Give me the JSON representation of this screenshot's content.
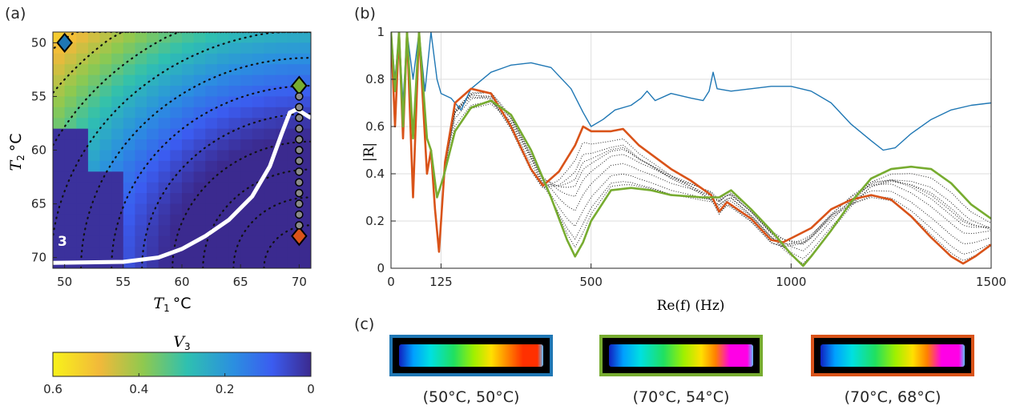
{
  "panel_labels": {
    "a": "(a)",
    "b": "(b)",
    "c": "(c)"
  },
  "colors": {
    "blue": "#1f77b4",
    "green": "#77ac30",
    "orange": "#d95319",
    "heat_high": "#f5d31c",
    "heat_low": "#3a2890"
  },
  "chart_data": [
    {
      "id": "a",
      "type": "heatmap",
      "xlabel_var": "T",
      "xlabel_sub": "1",
      "xlabel_unit": "°C",
      "ylabel_var": "T",
      "ylabel_sub": "2",
      "ylabel_unit": "°C",
      "xlim": [
        49,
        71
      ],
      "ylim": [
        71,
        49
      ],
      "xticks": [
        50,
        55,
        60,
        65,
        70
      ],
      "yticks": [
        50,
        55,
        60,
        65,
        70
      ],
      "annotation": "3",
      "colorbar": {
        "label_var": "V",
        "label_sub": "3",
        "range": [
          0.6,
          0
        ],
        "ticks": [
          "0.6",
          "0.4",
          "0.2",
          "0"
        ]
      },
      "markers": [
        {
          "shape": "diamond",
          "color": "blue",
          "x": 50,
          "y": 50
        },
        {
          "shape": "diamond",
          "color": "green",
          "x": 70,
          "y": 54
        },
        {
          "shape": "diamond",
          "color": "orange",
          "x": 70,
          "y": 68
        },
        {
          "shape": "circle",
          "x": 70,
          "y": 55
        },
        {
          "shape": "circle",
          "x": 70,
          "y": 56
        },
        {
          "shape": "circle",
          "x": 70,
          "y": 57
        },
        {
          "shape": "circle",
          "x": 70,
          "y": 58
        },
        {
          "shape": "circle",
          "x": 70,
          "y": 59
        },
        {
          "shape": "circle",
          "x": 70,
          "y": 60
        },
        {
          "shape": "circle",
          "x": 70,
          "y": 61
        },
        {
          "shape": "circle",
          "x": 70,
          "y": 62
        },
        {
          "shape": "circle",
          "x": 70,
          "y": 63
        },
        {
          "shape": "circle",
          "x": 70,
          "y": 64
        },
        {
          "shape": "circle",
          "x": 70,
          "y": 65
        },
        {
          "shape": "circle",
          "x": 70,
          "y": 66
        },
        {
          "shape": "circle",
          "x": 70,
          "y": 67
        }
      ],
      "boundary_curve": [
        [
          49,
          70.5
        ],
        [
          55,
          70.4
        ],
        [
          58,
          70
        ],
        [
          60,
          69.2
        ],
        [
          62,
          68
        ],
        [
          64,
          66.5
        ],
        [
          66,
          64.3
        ],
        [
          67.5,
          61.5
        ],
        [
          68.5,
          58.5
        ],
        [
          69.2,
          56.5
        ],
        [
          69.8,
          56.2
        ],
        [
          71,
          57
        ]
      ]
    },
    {
      "id": "b",
      "type": "line",
      "xlabel": "Re(f) (Hz)",
      "ylabel": "|R|",
      "xlim": [
        0,
        1500
      ],
      "ylim": [
        0,
        1
      ],
      "xticks": [
        "0",
        "125",
        "500",
        "1000",
        "1500"
      ],
      "xtick_values": [
        0,
        125,
        500,
        1000,
        1500
      ],
      "yticks": [
        "0",
        "0.2",
        "0.4",
        "0.6",
        "0.8",
        "1"
      ],
      "ytick_values": [
        0,
        0.2,
        0.4,
        0.6,
        0.8,
        1
      ],
      "grid": true,
      "series": [
        {
          "color": "blue",
          "points": [
            [
              0,
              1
            ],
            [
              10,
              0.8
            ],
            [
              20,
              1
            ],
            [
              30,
              0.7
            ],
            [
              40,
              1
            ],
            [
              55,
              0.8
            ],
            [
              70,
              1
            ],
            [
              85,
              0.75
            ],
            [
              100,
              1
            ],
            [
              115,
              0.8
            ],
            [
              125,
              0.74
            ],
            [
              150,
              0.72
            ],
            [
              175,
              0.67
            ],
            [
              200,
              0.76
            ],
            [
              250,
              0.83
            ],
            [
              300,
              0.86
            ],
            [
              350,
              0.87
            ],
            [
              400,
              0.85
            ],
            [
              450,
              0.76
            ],
            [
              480,
              0.66
            ],
            [
              500,
              0.6
            ],
            [
              530,
              0.63
            ],
            [
              560,
              0.67
            ],
            [
              600,
              0.69
            ],
            [
              625,
              0.72
            ],
            [
              640,
              0.75
            ],
            [
              660,
              0.71
            ],
            [
              700,
              0.74
            ],
            [
              750,
              0.72
            ],
            [
              780,
              0.71
            ],
            [
              795,
              0.75
            ],
            [
              805,
              0.83
            ],
            [
              815,
              0.76
            ],
            [
              850,
              0.75
            ],
            [
              900,
              0.76
            ],
            [
              950,
              0.77
            ],
            [
              1000,
              0.77
            ],
            [
              1050,
              0.75
            ],
            [
              1100,
              0.7
            ],
            [
              1150,
              0.61
            ],
            [
              1200,
              0.54
            ],
            [
              1230,
              0.5
            ],
            [
              1260,
              0.51
            ],
            [
              1300,
              0.57
            ],
            [
              1350,
              0.63
            ],
            [
              1400,
              0.67
            ],
            [
              1450,
              0.69
            ],
            [
              1500,
              0.7
            ]
          ]
        },
        {
          "color": "orange",
          "points": [
            [
              0,
              1
            ],
            [
              10,
              0.6
            ],
            [
              20,
              1
            ],
            [
              30,
              0.55
            ],
            [
              40,
              1
            ],
            [
              55,
              0.3
            ],
            [
              70,
              1
            ],
            [
              90,
              0.4
            ],
            [
              100,
              0.5
            ],
            [
              110,
              0.25
            ],
            [
              120,
              0.07
            ],
            [
              135,
              0.45
            ],
            [
              160,
              0.7
            ],
            [
              200,
              0.76
            ],
            [
              250,
              0.74
            ],
            [
              300,
              0.6
            ],
            [
              350,
              0.42
            ],
            [
              380,
              0.35
            ],
            [
              420,
              0.41
            ],
            [
              460,
              0.52
            ],
            [
              480,
              0.6
            ],
            [
              500,
              0.58
            ],
            [
              550,
              0.58
            ],
            [
              580,
              0.59
            ],
            [
              620,
              0.52
            ],
            [
              700,
              0.42
            ],
            [
              750,
              0.37
            ],
            [
              800,
              0.31
            ],
            [
              820,
              0.24
            ],
            [
              840,
              0.28
            ],
            [
              900,
              0.21
            ],
            [
              950,
              0.12
            ],
            [
              980,
              0.11
            ],
            [
              1050,
              0.17
            ],
            [
              1100,
              0.25
            ],
            [
              1150,
              0.29
            ],
            [
              1200,
              0.31
            ],
            [
              1250,
              0.29
            ],
            [
              1300,
              0.22
            ],
            [
              1350,
              0.13
            ],
            [
              1400,
              0.05
            ],
            [
              1430,
              0.02
            ],
            [
              1460,
              0.05
            ],
            [
              1500,
              0.1
            ]
          ]
        },
        {
          "color": "green",
          "points": [
            [
              0,
              1
            ],
            [
              10,
              0.75
            ],
            [
              20,
              1
            ],
            [
              30,
              0.6
            ],
            [
              40,
              1
            ],
            [
              55,
              0.55
            ],
            [
              70,
              1
            ],
            [
              90,
              0.55
            ],
            [
              100,
              0.5
            ],
            [
              115,
              0.3
            ],
            [
              130,
              0.38
            ],
            [
              160,
              0.58
            ],
            [
              200,
              0.68
            ],
            [
              250,
              0.71
            ],
            [
              300,
              0.65
            ],
            [
              350,
              0.5
            ],
            [
              400,
              0.3
            ],
            [
              440,
              0.12
            ],
            [
              460,
              0.05
            ],
            [
              480,
              0.11
            ],
            [
              500,
              0.2
            ],
            [
              550,
              0.33
            ],
            [
              600,
              0.34
            ],
            [
              650,
              0.33
            ],
            [
              700,
              0.31
            ],
            [
              780,
              0.3
            ],
            [
              820,
              0.3
            ],
            [
              850,
              0.33
            ],
            [
              900,
              0.25
            ],
            [
              950,
              0.16
            ],
            [
              1000,
              0.06
            ],
            [
              1030,
              0.01
            ],
            [
              1050,
              0.05
            ],
            [
              1100,
              0.16
            ],
            [
              1150,
              0.28
            ],
            [
              1200,
              0.38
            ],
            [
              1250,
              0.42
            ],
            [
              1300,
              0.43
            ],
            [
              1350,
              0.42
            ],
            [
              1400,
              0.36
            ],
            [
              1450,
              0.27
            ],
            [
              1500,
              0.21
            ]
          ]
        }
      ]
    }
  ],
  "thumbnails": [
    {
      "caption": "(50°C, 50°C)",
      "frame_color": "blue",
      "hot": 0.8
    },
    {
      "caption": "(70°C, 54°C)",
      "frame_color": "green",
      "hot": 1.0
    },
    {
      "caption": "(70°C, 68°C)",
      "frame_color": "orange",
      "hot": 1.0
    }
  ]
}
